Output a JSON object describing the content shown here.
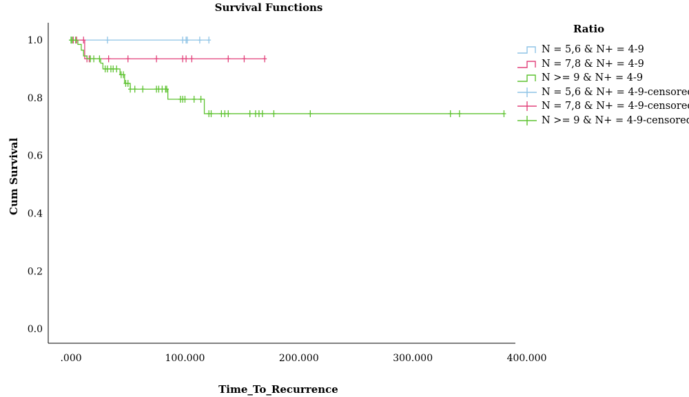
{
  "chart_data": {
    "type": "line",
    "step": true,
    "title": "Survival Functions",
    "xlabel": "Time_To_Recurrence",
    "ylabel": "Cum Survival",
    "xlim": [
      -20,
      390
    ],
    "ylim": [
      -0.05,
      1.06
    ],
    "xticks": [
      0,
      100,
      200,
      300,
      400
    ],
    "xtick_labels": [
      ".000",
      "100.000",
      "200.000",
      "300.000",
      "400.000"
    ],
    "yticks": [
      0.0,
      0.2,
      0.4,
      0.6,
      0.8,
      1.0
    ],
    "ytick_labels": [
      "0.0",
      "0.2",
      "0.4",
      "0.6",
      "0.8",
      "1.0"
    ],
    "grid": false,
    "legend_title": "Ratio",
    "legend_position": "right",
    "series": [
      {
        "name": "N = 5,6 & N+ = 4-9",
        "censored_label": "N = 5,6 & N+ = 4-9-censored",
        "color": "#8ec3e6",
        "steps": [
          [
            0,
            1.0
          ],
          [
            121,
            1.0
          ]
        ],
        "censored": [
          [
            0,
            1.0
          ],
          [
            2,
            1.0
          ],
          [
            32,
            1.0
          ],
          [
            98,
            1.0
          ],
          [
            101,
            1.0
          ],
          [
            102,
            1.0
          ],
          [
            113,
            1.0
          ],
          [
            121,
            1.0
          ]
        ]
      },
      {
        "name": "N = 7,8 & N+ = 4-9",
        "censored_label": "N = 7,8 & N+ = 4-9-censored",
        "color": "#e2407a",
        "steps": [
          [
            0,
            1.0
          ],
          [
            12,
            1.0
          ],
          [
            12,
            0.935
          ],
          [
            170,
            0.935
          ]
        ],
        "censored": [
          [
            2,
            1.0
          ],
          [
            5,
            1.0
          ],
          [
            11,
            1.0
          ],
          [
            14,
            0.935
          ],
          [
            16,
            0.935
          ],
          [
            33,
            0.935
          ],
          [
            50,
            0.935
          ],
          [
            75,
            0.935
          ],
          [
            98,
            0.935
          ],
          [
            101,
            0.935
          ],
          [
            106,
            0.935
          ],
          [
            138,
            0.935
          ],
          [
            152,
            0.935
          ],
          [
            170,
            0.935
          ]
        ]
      },
      {
        "name": "N >= 9 & N+ = 4-9",
        "censored_label": "N >= 9 & N+ = 4-9-censored",
        "color": "#5cc22e",
        "steps": [
          [
            0,
            1.0
          ],
          [
            6,
            1.0
          ],
          [
            6,
            0.985
          ],
          [
            9,
            0.985
          ],
          [
            9,
            0.965
          ],
          [
            11,
            0.965
          ],
          [
            11,
            0.945
          ],
          [
            14,
            0.945
          ],
          [
            14,
            0.935
          ],
          [
            26,
            0.935
          ],
          [
            26,
            0.92
          ],
          [
            28,
            0.92
          ],
          [
            28,
            0.9
          ],
          [
            43,
            0.9
          ],
          [
            43,
            0.88
          ],
          [
            47,
            0.88
          ],
          [
            47,
            0.85
          ],
          [
            52,
            0.85
          ],
          [
            52,
            0.83
          ],
          [
            85,
            0.83
          ],
          [
            85,
            0.795
          ],
          [
            117,
            0.795
          ],
          [
            117,
            0.745
          ],
          [
            380,
            0.745
          ]
        ],
        "censored": [
          [
            0,
            1.0
          ],
          [
            1,
            1.0
          ],
          [
            4,
            1.0
          ],
          [
            17,
            0.935
          ],
          [
            20,
            0.935
          ],
          [
            25,
            0.935
          ],
          [
            30,
            0.9
          ],
          [
            32,
            0.9
          ],
          [
            35,
            0.9
          ],
          [
            37,
            0.9
          ],
          [
            40,
            0.9
          ],
          [
            44,
            0.88
          ],
          [
            46,
            0.88
          ],
          [
            48,
            0.85
          ],
          [
            50,
            0.85
          ],
          [
            52,
            0.83
          ],
          [
            56,
            0.83
          ],
          [
            63,
            0.83
          ],
          [
            75,
            0.83
          ],
          [
            77,
            0.83
          ],
          [
            80,
            0.83
          ],
          [
            83,
            0.83
          ],
          [
            84,
            0.83
          ],
          [
            96,
            0.795
          ],
          [
            98,
            0.795
          ],
          [
            100,
            0.795
          ],
          [
            108,
            0.795
          ],
          [
            114,
            0.795
          ],
          [
            121,
            0.745
          ],
          [
            123,
            0.745
          ],
          [
            132,
            0.745
          ],
          [
            135,
            0.745
          ],
          [
            138,
            0.745
          ],
          [
            157,
            0.745
          ],
          [
            162,
            0.745
          ],
          [
            165,
            0.745
          ],
          [
            168,
            0.745
          ],
          [
            178,
            0.745
          ],
          [
            210,
            0.745
          ],
          [
            333,
            0.745
          ],
          [
            341,
            0.745
          ],
          [
            380,
            0.745
          ]
        ]
      }
    ]
  }
}
